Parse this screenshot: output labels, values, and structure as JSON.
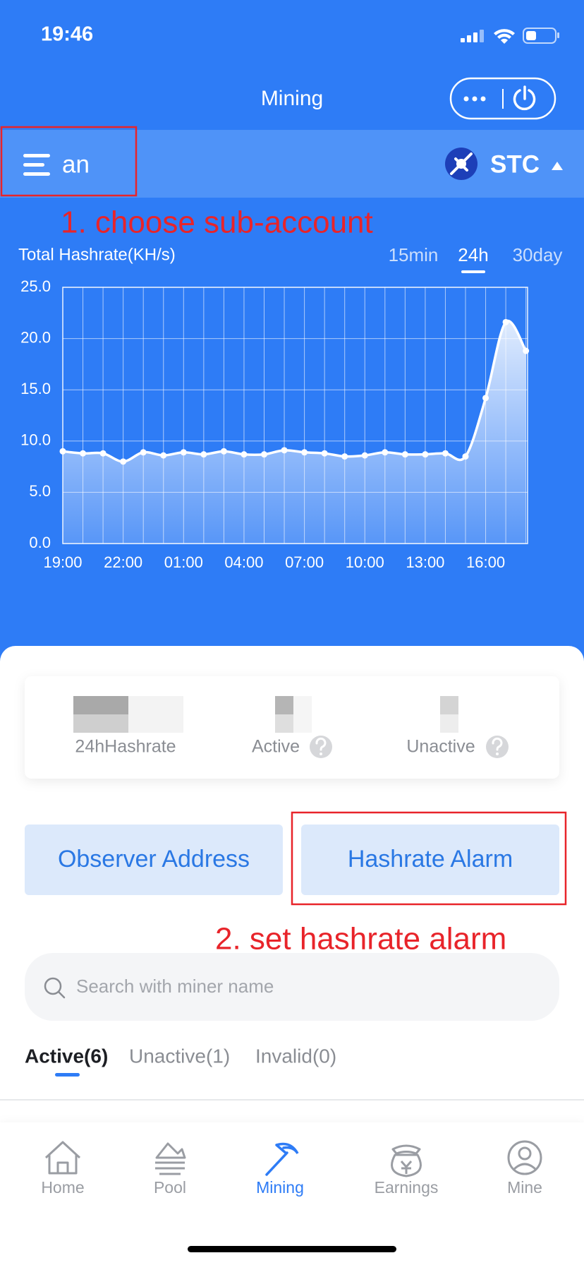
{
  "status_bar": {
    "time": "19:46"
  },
  "header": {
    "title": "Mining"
  },
  "account_bar": {
    "account": "an",
    "coin": "STC"
  },
  "annotations": [
    "1. choose sub-account",
    "2. set hashrate alarm"
  ],
  "chart_data": {
    "type": "line",
    "title": "Total Hashrate(KH/s)",
    "range_options": [
      "15min",
      "24h",
      "30day"
    ],
    "selected_range": 1,
    "categories": [
      "19:00",
      null,
      null,
      "22:00",
      null,
      null,
      "01:00",
      null,
      null,
      "04:00",
      null,
      null,
      "07:00",
      null,
      null,
      "10:00",
      null,
      null,
      "13:00",
      null,
      null,
      "16:00",
      null,
      null
    ],
    "values": [
      9.0,
      8.8,
      8.8,
      8.0,
      8.9,
      8.6,
      8.9,
      8.7,
      9.0,
      8.7,
      8.7,
      9.1,
      8.9,
      8.8,
      8.5,
      8.6,
      8.9,
      8.7,
      8.7,
      8.8,
      8.5,
      14.2,
      21.6,
      18.8
    ],
    "color": "#ffffff",
    "ylim": [
      0,
      25
    ],
    "yticks": [
      {
        "value": 0,
        "label": "0.0"
      },
      {
        "value": 5,
        "label": "5.0"
      },
      {
        "value": 10,
        "label": "10.0"
      },
      {
        "value": 15,
        "label": "15.0"
      },
      {
        "value": 20,
        "label": "20.0"
      },
      {
        "value": 25,
        "label": "25.0"
      }
    ],
    "grid": true
  },
  "stats": {
    "labels": [
      "24hHashrate",
      "Active",
      "Unactive"
    ]
  },
  "buttons": [
    "Observer Address",
    "Hashrate Alarm"
  ],
  "search": {
    "placeholder": "Search with miner name"
  },
  "tabs": [
    "Active(6)",
    "Unactive(1)",
    "Invalid(0)"
  ],
  "nav": {
    "items": [
      "Home",
      "Pool",
      "Mining",
      "Earnings",
      "Mine"
    ],
    "active": 2
  }
}
